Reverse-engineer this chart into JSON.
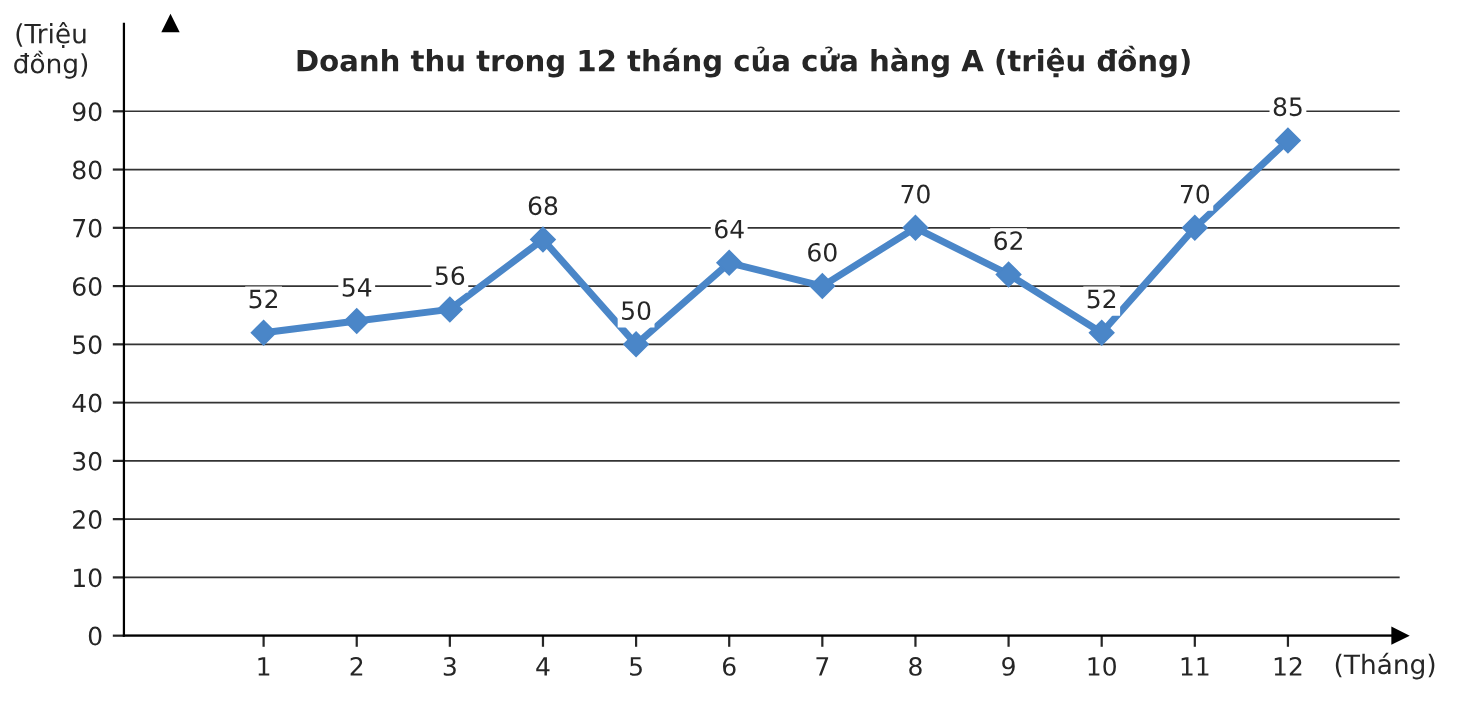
{
  "chart_data": {
    "type": "line",
    "title": "Doanh thu trong 12 tháng của cửa hàng A (triệu đồng)",
    "xlabel": "(Tháng)",
    "ylabel": "(Triệu\nđồng)",
    "x": [
      1,
      2,
      3,
      4,
      5,
      6,
      7,
      8,
      9,
      10,
      11,
      12
    ],
    "series": [
      {
        "color": "#4a86c8",
        "values": [
          52,
          54,
          56,
          68,
          50,
          64,
          60,
          70,
          62,
          52,
          70,
          85
        ]
      }
    ],
    "xlim": [
      -0.5,
      13.2
    ],
    "xticks": [
      1,
      2,
      3,
      4,
      5,
      6,
      7,
      8,
      9,
      10,
      11,
      12
    ],
    "ylim": [
      0,
      105
    ],
    "yticks": [
      0,
      10,
      20,
      30,
      40,
      50,
      60,
      70,
      80,
      90
    ],
    "grid": "y",
    "marker": "diamond",
    "line_style": "solid",
    "data_labels": true,
    "legend": false
  }
}
